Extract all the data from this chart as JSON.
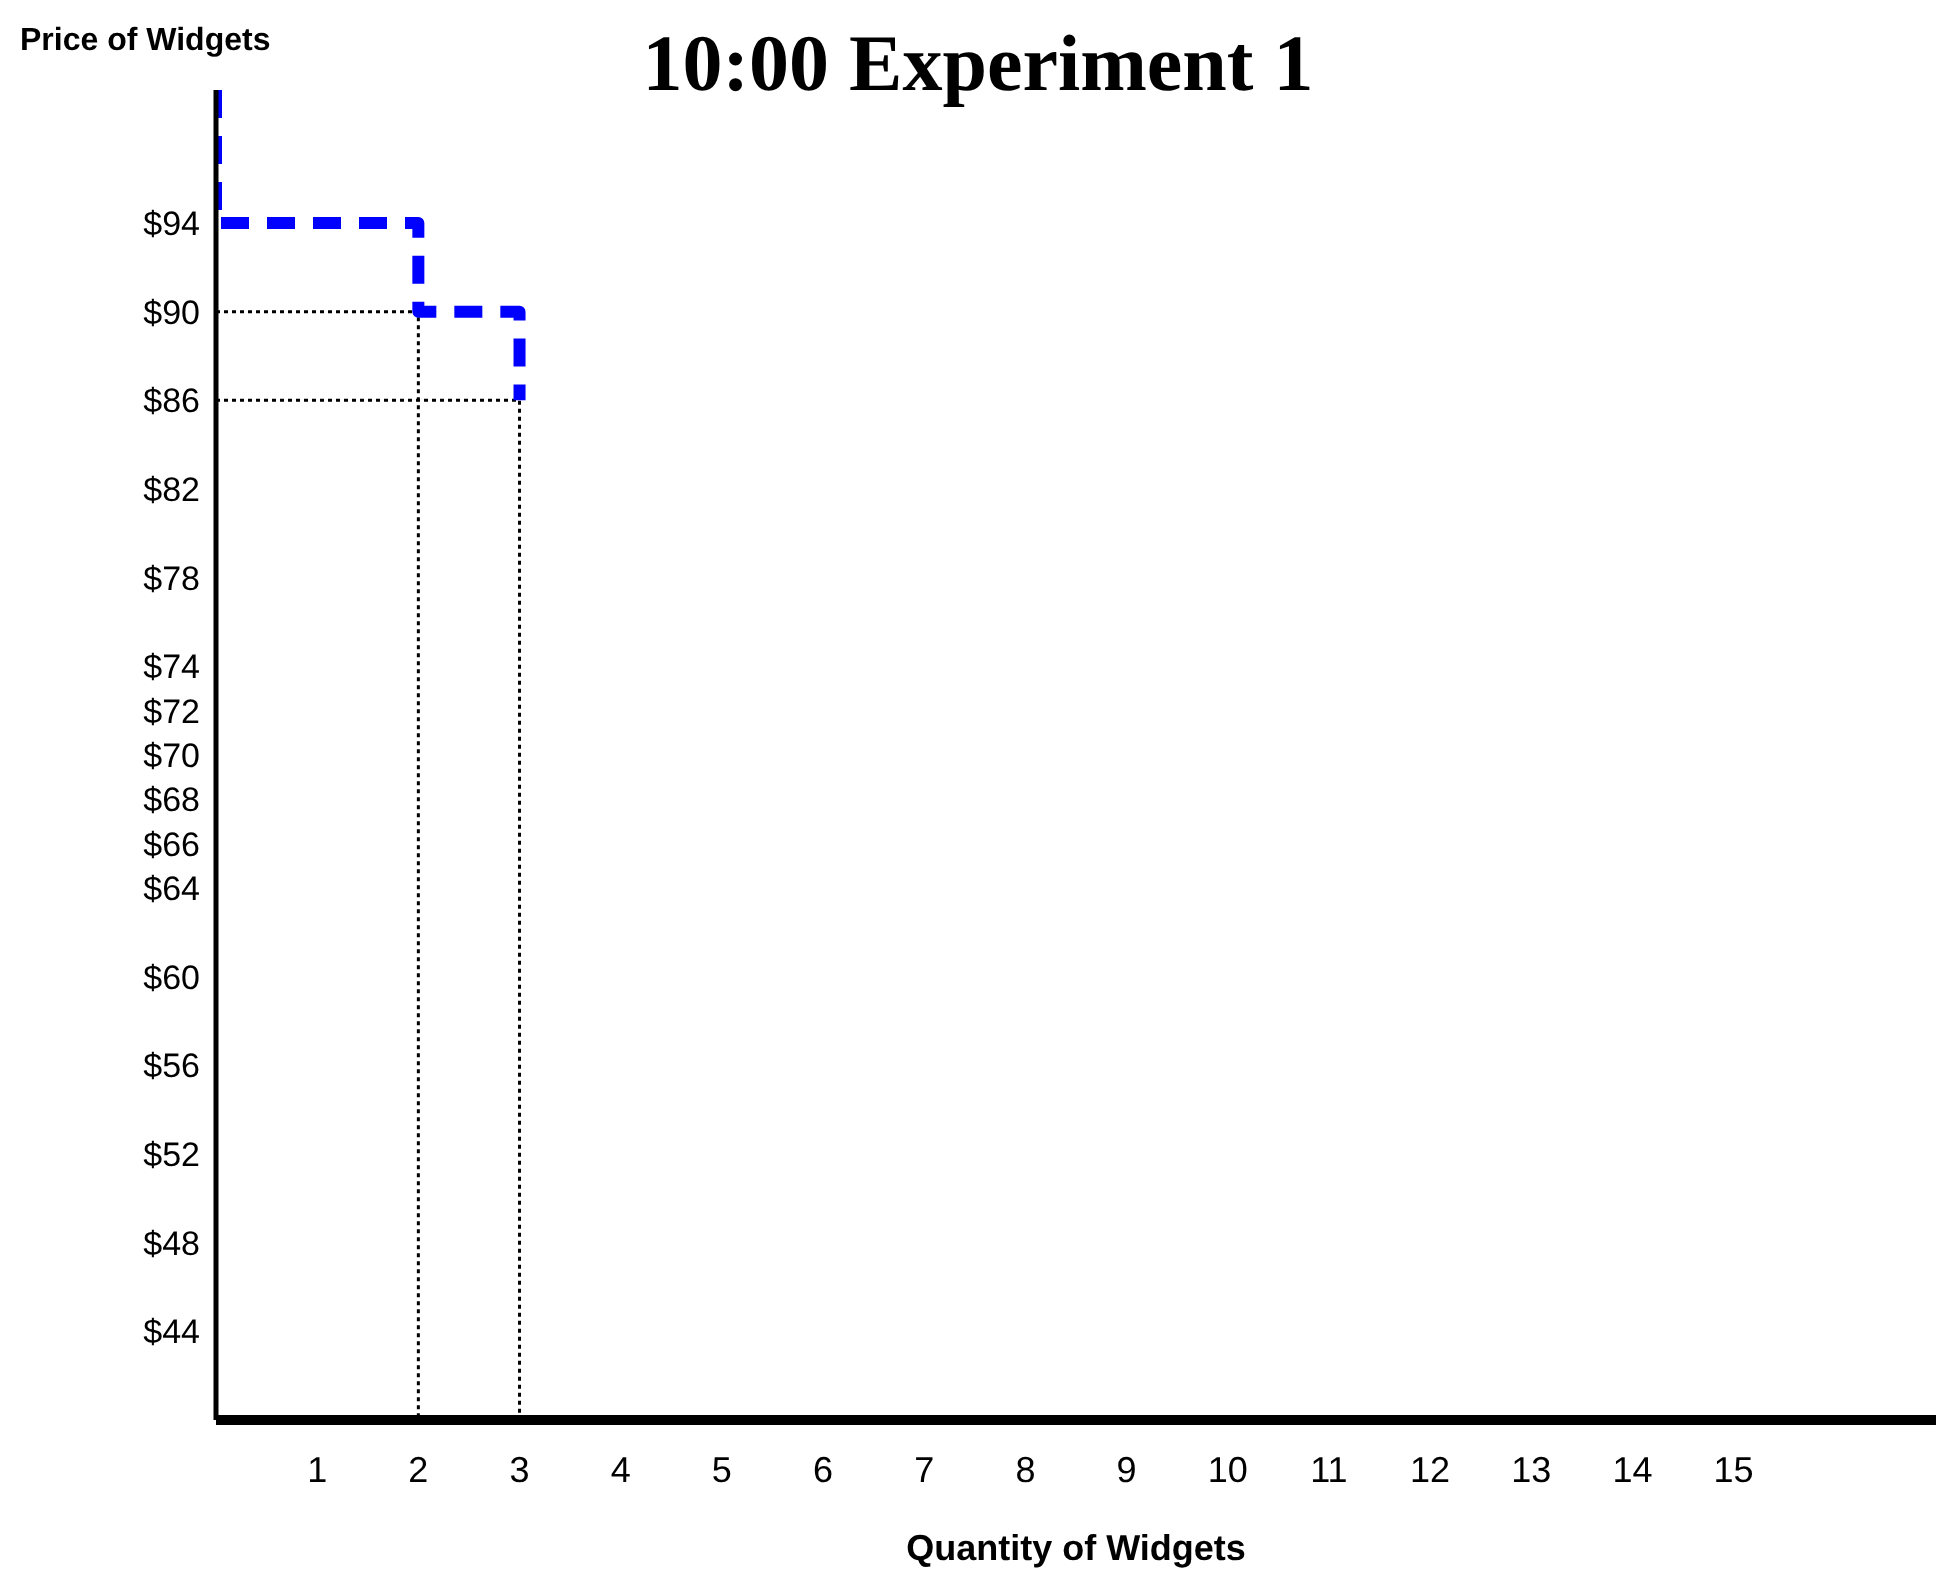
{
  "chart_data": {
    "type": "line",
    "title": "10:00 Experiment 1",
    "xlabel": "Quantity of Widgets",
    "ylabel": "Price of Widgets",
    "marker": "none",
    "xlim": [
      0,
      17
    ],
    "xticks": [
      1,
      2,
      3,
      4,
      5,
      6,
      7,
      8,
      9,
      10,
      11,
      12,
      13,
      14,
      15
    ],
    "ylim": [
      40,
      100
    ],
    "yticks": [
      {
        "value": 44,
        "label": "$44"
      },
      {
        "value": 48,
        "label": "$48"
      },
      {
        "value": 52,
        "label": "$52"
      },
      {
        "value": 56,
        "label": "$56"
      },
      {
        "value": 60,
        "label": "$60"
      },
      {
        "value": 64,
        "label": "$64"
      },
      {
        "value": 66,
        "label": "$66"
      },
      {
        "value": 68,
        "label": "$68"
      },
      {
        "value": 70,
        "label": "$70"
      },
      {
        "value": 72,
        "label": "$72"
      },
      {
        "value": 74,
        "label": "$74"
      },
      {
        "value": 78,
        "label": "$78"
      },
      {
        "value": 82,
        "label": "$82"
      },
      {
        "value": 86,
        "label": "$86"
      },
      {
        "value": 90,
        "label": "$90"
      },
      {
        "value": 94,
        "label": "$94"
      }
    ],
    "series": [
      {
        "color": "#000000",
        "line_style": "dotted",
        "x": [
          0,
          2,
          2
        ],
        "values": [
          90,
          90,
          40
        ]
      },
      {
        "color": "#000000",
        "line_style": "dotted",
        "x": [
          0,
          3,
          3
        ],
        "values": [
          86,
          86,
          40
        ]
      },
      {
        "color": "#0000ff",
        "line_style": "dashed",
        "x": [
          0,
          0,
          2,
          2,
          3,
          3
        ],
        "values": [
          100,
          94,
          94,
          90,
          90,
          86
        ]
      }
    ]
  }
}
